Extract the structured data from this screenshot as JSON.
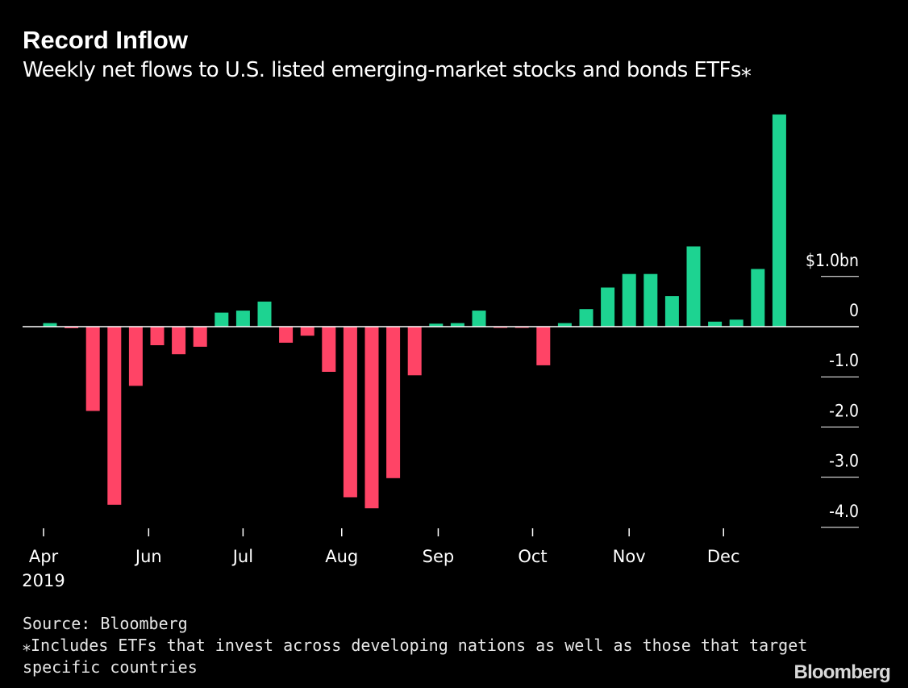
{
  "header": {
    "title": "Record Inflow",
    "subtitle": "Weekly net flows to U.S. listed emerging-market stocks and bonds ETFs⁎"
  },
  "footer": {
    "source": "Source: Bloomberg",
    "note_line1": "⁎Includes ETFs that invest across developing nations as well as those that target",
    "note_line2": "specific countries"
  },
  "brand": {
    "logo": "Bloomberg"
  },
  "colors": {
    "background": "#000000",
    "positive": "#1DD391",
    "negative": "#FF4466",
    "text": "#FFFFFF"
  },
  "chart_data": {
    "type": "bar",
    "title": "Record Inflow",
    "subtitle": "Weekly net flows to U.S. listed emerging-market stocks and bonds ETFs⁎",
    "ylabel": "",
    "xlabel": "",
    "y_unit_label": "$1.0bn",
    "ylim": [
      -4.0,
      4.2
    ],
    "y_axis_position": "right",
    "y_ticks": [
      {
        "value": 1.0,
        "label": "$1.0bn"
      },
      {
        "value": 0,
        "label": "0"
      },
      {
        "value": -1.0,
        "label": "-1.0"
      },
      {
        "value": -2.0,
        "label": "-2.0"
      },
      {
        "value": -3.0,
        "label": "-3.0"
      },
      {
        "value": -4.0,
        "label": "-4.0"
      }
    ],
    "x_ticks": [
      {
        "index": 0,
        "label": "Apr",
        "sublabel": "2019"
      },
      {
        "index": 4.9,
        "label": "Jun"
      },
      {
        "index": 9.3,
        "label": "Jul"
      },
      {
        "index": 13.9,
        "label": "Aug"
      },
      {
        "index": 18.4,
        "label": "Sep"
      },
      {
        "index": 22.8,
        "label": "Oct"
      },
      {
        "index": 27.3,
        "label": "Nov"
      },
      {
        "index": 31.7,
        "label": "Dec"
      }
    ],
    "values": [
      0.07,
      -0.03,
      -1.68,
      -3.55,
      -1.18,
      -0.37,
      -0.55,
      -0.4,
      0.28,
      0.32,
      0.5,
      -0.32,
      -0.18,
      -0.9,
      -3.4,
      -3.62,
      -3.02,
      -0.97,
      0.06,
      0.07,
      0.32,
      -0.02,
      -0.02,
      -0.77,
      0.07,
      0.35,
      0.78,
      1.05,
      1.05,
      0.61,
      1.6,
      0.1,
      0.14,
      1.15,
      4.23
    ]
  }
}
